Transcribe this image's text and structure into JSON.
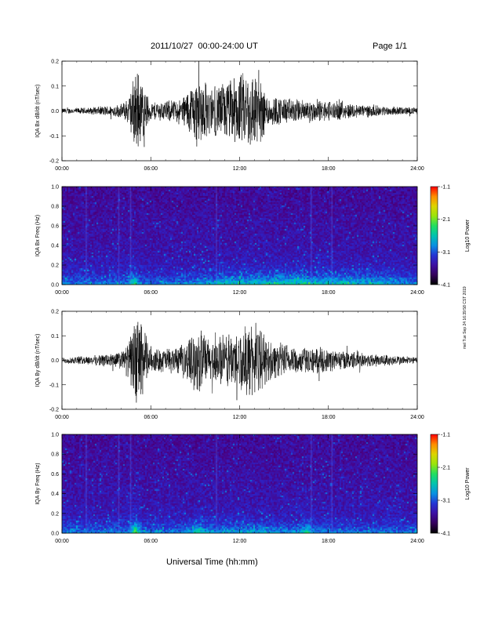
{
  "header": {
    "title": "2011/10/27  00:00-24:00 UT",
    "page": "Page 1/1"
  },
  "footer": {
    "xlabel": "Universal Time (hh:mm)",
    "stamp": "mel Tue Sep 24 16:39:58 CST 2019"
  },
  "chart_data": [
    {
      "type": "line",
      "title": "",
      "ylabel": "IQA Bx dB/dt (nT/sec)",
      "xlabel": "",
      "xlim": [
        "00:00",
        "24:00"
      ],
      "ylim": [
        -0.2,
        0.2
      ],
      "xticks": [
        "00:00",
        "06:00",
        "12:00",
        "18:00",
        "24:00"
      ],
      "yticks": [
        "-0.2",
        "-0.1",
        "0.0",
        "0.1",
        "0.2"
      ],
      "series": [
        {
          "envelope_hours": [
            0,
            2,
            4,
            4.5,
            5,
            5.3,
            6,
            8,
            9.3,
            10,
            11,
            12,
            13,
            14,
            16,
            18,
            20,
            22,
            24
          ],
          "amplitude_nT_per_sec": [
            0.012,
            0.015,
            0.03,
            0.06,
            0.2,
            0.15,
            0.04,
            0.05,
            0.17,
            0.1,
            0.13,
            0.16,
            0.18,
            0.07,
            0.05,
            0.045,
            0.03,
            0.02,
            0.015
          ]
        }
      ]
    },
    {
      "type": "heatmap",
      "title": "",
      "ylabel": "IQA Bx Freq (Hz)",
      "xlim": [
        "00:00",
        "24:00"
      ],
      "ylim": [
        0.0,
        1.0
      ],
      "xticks": [
        "00:00",
        "06:00",
        "12:00",
        "18:00",
        "24:00"
      ],
      "yticks": [
        "0.0",
        "0.2",
        "0.4",
        "0.6",
        "0.8",
        "1.0"
      ],
      "colorbar": {
        "label": "Log10 Power",
        "ticks": [
          "-1.1",
          "-2.1",
          "-3.1",
          "-4.1"
        ],
        "range": [
          -4.1,
          -1.1
        ]
      }
    },
    {
      "type": "line",
      "title": "",
      "ylabel": "IQA By dB/dt (nT/sec)",
      "xlim": [
        "00:00",
        "24:00"
      ],
      "ylim": [
        -0.2,
        0.2
      ],
      "xticks": [
        "00:00",
        "06:00",
        "12:00",
        "18:00",
        "24:00"
      ],
      "yticks": [
        "-0.2",
        "-0.1",
        "0.0",
        "0.1",
        "0.2"
      ],
      "series": [
        {
          "envelope_hours": [
            0,
            2,
            4,
            4.5,
            5,
            5.3,
            6,
            8,
            9.3,
            10,
            11,
            12,
            13,
            14,
            16,
            18,
            20,
            22,
            24
          ],
          "amplitude_nT_per_sec": [
            0.015,
            0.02,
            0.04,
            0.08,
            0.2,
            0.2,
            0.05,
            0.06,
            0.15,
            0.09,
            0.12,
            0.14,
            0.17,
            0.09,
            0.06,
            0.05,
            0.035,
            0.025,
            0.015
          ]
        }
      ]
    },
    {
      "type": "heatmap",
      "title": "",
      "ylabel": "IQA By Freq (Hz)",
      "xlim": [
        "00:00",
        "24:00"
      ],
      "ylim": [
        0.0,
        1.0
      ],
      "xticks": [
        "00:00",
        "06:00",
        "12:00",
        "18:00",
        "24:00"
      ],
      "yticks": [
        "0.0",
        "0.2",
        "0.4",
        "0.6",
        "0.8",
        "1.0"
      ],
      "colorbar": {
        "label": "Log10 Power",
        "ticks": [
          "-1.1",
          "-2.1",
          "-3.1",
          "-4.1"
        ],
        "range": [
          -4.1,
          -1.1
        ]
      }
    }
  ]
}
